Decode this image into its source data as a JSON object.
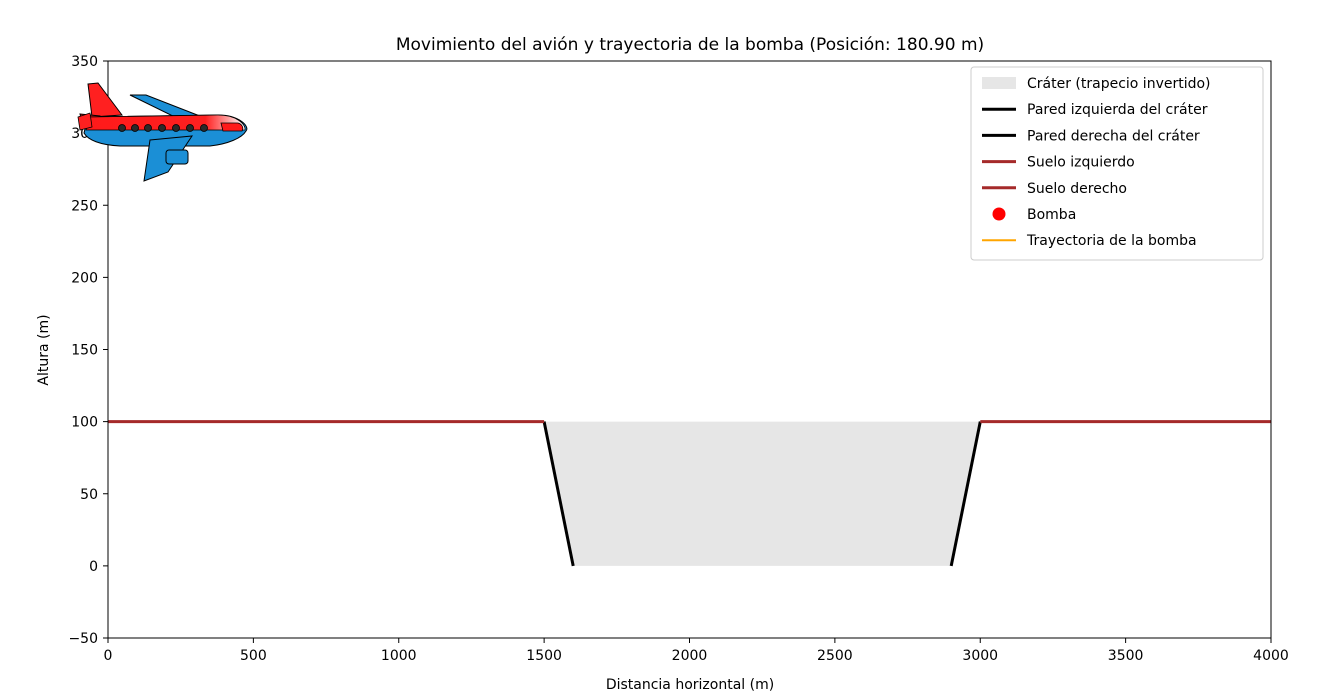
{
  "chart_data": {
    "type": "line",
    "title": "Movimiento del avión y trayectoria de la bomba (Posición: 180.90 m)",
    "xlabel": "Distancia horizontal (m)",
    "ylabel": "Altura (m)",
    "xlim": [
      0,
      4000
    ],
    "ylim": [
      -50,
      350
    ],
    "xticks": [
      0,
      500,
      1000,
      1500,
      2000,
      2500,
      3000,
      3500,
      4000
    ],
    "yticks": [
      -50,
      0,
      50,
      100,
      150,
      200,
      250,
      300,
      350
    ],
    "xtick_labels": [
      "0",
      "500",
      "1000",
      "1500",
      "2000",
      "2500",
      "3000",
      "3500",
      "4000"
    ],
    "ytick_labels": [
      "−50",
      "0",
      "50",
      "100",
      "150",
      "200",
      "250",
      "300",
      "350"
    ],
    "grid": false,
    "legend_position": "top-right",
    "series": [
      {
        "name": "Cráter (trapecio invertido)",
        "kind": "fill",
        "color": "#e6e6e6",
        "x": [
          1500,
          3000,
          2900,
          1600
        ],
        "y": [
          100,
          100,
          0,
          0
        ]
      },
      {
        "name": "Pared izquierda del cráter",
        "kind": "line",
        "color": "#000000",
        "x": [
          1500,
          1600
        ],
        "y": [
          100,
          0
        ]
      },
      {
        "name": "Pared derecha del cráter",
        "kind": "line",
        "color": "#000000",
        "x": [
          2900,
          3000
        ],
        "y": [
          0,
          100
        ]
      },
      {
        "name": "Suelo izquierdo",
        "kind": "line",
        "color": "#a52a2a",
        "x": [
          0,
          1500
        ],
        "y": [
          100,
          100
        ]
      },
      {
        "name": "Suelo derecho",
        "kind": "line",
        "color": "#a52a2a",
        "x": [
          3000,
          4000
        ],
        "y": [
          100,
          100
        ]
      },
      {
        "name": "Bomba",
        "kind": "marker",
        "color": "#ff0000",
        "x": [],
        "y": []
      },
      {
        "name": "Trayectoria de la bomba",
        "kind": "line",
        "color": "#ffa500",
        "x": [],
        "y": []
      }
    ],
    "airplane": {
      "x": 180.9,
      "y": 300,
      "icon": "airplane-icon"
    }
  }
}
